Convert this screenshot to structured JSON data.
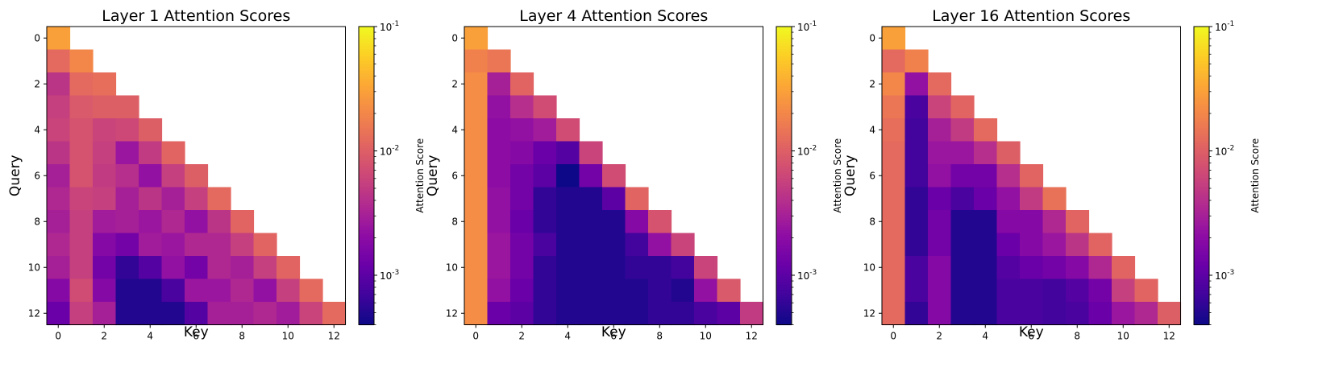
{
  "chart_data": [
    {
      "type": "heatmap",
      "title": "Layer 1 Attention Scores",
      "xlabel": "Key",
      "ylabel": "Query",
      "colorbar_label": "Attention Score",
      "colormap": "plasma",
      "scale": "log",
      "vmin": 0.0004,
      "vmax": 0.1,
      "x_ticks": [
        "0",
        "2",
        "4",
        "6",
        "8",
        "10",
        "12"
      ],
      "y_ticks": [
        "0",
        "2",
        "4",
        "6",
        "8",
        "10",
        "12"
      ],
      "colorbar_ticks": [
        {
          "base": "10",
          "exp": "-1"
        },
        {
          "base": "10",
          "exp": "-2"
        },
        {
          "base": "10",
          "exp": "-3"
        }
      ],
      "matrix": [
        [
          0.03
        ],
        [
          0.012,
          0.02
        ],
        [
          0.0045,
          0.012,
          0.013
        ],
        [
          0.0055,
          0.009,
          0.01,
          0.01
        ],
        [
          0.006,
          0.008,
          0.006,
          0.0065,
          0.01
        ],
        [
          0.0045,
          0.008,
          0.0055,
          0.0025,
          0.005,
          0.011
        ],
        [
          0.003,
          0.008,
          0.005,
          0.004,
          0.0022,
          0.0055,
          0.01
        ],
        [
          0.0035,
          0.006,
          0.0055,
          0.003,
          0.0045,
          0.003,
          0.0055,
          0.012
        ],
        [
          0.003,
          0.0055,
          0.0028,
          0.003,
          0.0025,
          0.0035,
          0.0022,
          0.0045,
          0.011
        ],
        [
          0.0035,
          0.0055,
          0.0018,
          0.0014,
          0.0028,
          0.0025,
          0.0035,
          0.0035,
          0.0055,
          0.011
        ],
        [
          0.003,
          0.0055,
          0.0014,
          0.0006,
          0.0009,
          0.0022,
          0.0014,
          0.0035,
          0.003,
          0.0055,
          0.011
        ],
        [
          0.0018,
          0.007,
          0.0018,
          0.0005,
          0.0005,
          0.0008,
          0.0025,
          0.0025,
          0.0035,
          0.0022,
          0.0055,
          0.012
        ],
        [
          0.0012,
          0.0055,
          0.003,
          0.0005,
          0.0005,
          0.0005,
          0.0009,
          0.003,
          0.003,
          0.0035,
          0.0028,
          0.006,
          0.012
        ]
      ]
    },
    {
      "type": "heatmap",
      "title": "Layer 4 Attention Scores",
      "xlabel": "Key",
      "ylabel": "Query",
      "colorbar_label": "Attention Score",
      "colormap": "plasma",
      "scale": "log",
      "vmin": 0.0004,
      "vmax": 0.1,
      "x_ticks": [
        "0",
        "2",
        "4",
        "6",
        "8",
        "10",
        "12"
      ],
      "y_ticks": [
        "0",
        "2",
        "4",
        "6",
        "8",
        "10",
        "12"
      ],
      "colorbar_ticks": [
        {
          "base": "10",
          "exp": "-1"
        },
        {
          "base": "10",
          "exp": "-2"
        },
        {
          "base": "10",
          "exp": "-3"
        }
      ],
      "matrix": [
        [
          0.03
        ],
        [
          0.018,
          0.015
        ],
        [
          0.022,
          0.003,
          0.011
        ],
        [
          0.022,
          0.0022,
          0.004,
          0.007
        ],
        [
          0.022,
          0.002,
          0.0022,
          0.0028,
          0.007
        ],
        [
          0.022,
          0.002,
          0.0018,
          0.0012,
          0.0009,
          0.006
        ],
        [
          0.022,
          0.002,
          0.0014,
          0.001,
          0.0004,
          0.0014,
          0.007
        ],
        [
          0.022,
          0.0022,
          0.0014,
          0.0006,
          0.0005,
          0.0005,
          0.001,
          0.011
        ],
        [
          0.022,
          0.0022,
          0.0012,
          0.0006,
          0.0005,
          0.0005,
          0.0005,
          0.0018,
          0.008
        ],
        [
          0.022,
          0.0025,
          0.0014,
          0.0008,
          0.0005,
          0.0005,
          0.0005,
          0.0007,
          0.0022,
          0.006
        ],
        [
          0.022,
          0.0025,
          0.0014,
          0.0006,
          0.0005,
          0.0005,
          0.0005,
          0.0006,
          0.0006,
          0.0007,
          0.006
        ],
        [
          0.022,
          0.0022,
          0.0012,
          0.0006,
          0.0005,
          0.0005,
          0.0005,
          0.0005,
          0.0006,
          0.0005,
          0.0022,
          0.009
        ],
        [
          0.022,
          0.0012,
          0.001,
          0.0006,
          0.0005,
          0.0005,
          0.0005,
          0.0005,
          0.0006,
          0.0006,
          0.0008,
          0.001,
          0.005
        ]
      ]
    },
    {
      "type": "heatmap",
      "title": "Layer 16 Attention Scores",
      "xlabel": "Key",
      "ylabel": "Query",
      "colorbar_label": "Attention Score",
      "colormap": "plasma",
      "scale": "log",
      "vmin": 0.0004,
      "vmax": 0.1,
      "x_ticks": [
        "0",
        "2",
        "4",
        "6",
        "8",
        "10",
        "12"
      ],
      "y_ticks": [
        "0",
        "2",
        "4",
        "6",
        "8",
        "10",
        "12"
      ],
      "colorbar_ticks": [
        {
          "base": "10",
          "exp": "-1"
        },
        {
          "base": "10",
          "exp": "-2"
        },
        {
          "base": "10",
          "exp": "-3"
        }
      ],
      "matrix": [
        [
          0.03
        ],
        [
          0.012,
          0.018
        ],
        [
          0.02,
          0.0022,
          0.012
        ],
        [
          0.015,
          0.0008,
          0.006,
          0.011
        ],
        [
          0.013,
          0.0007,
          0.003,
          0.005,
          0.012
        ],
        [
          0.012,
          0.0007,
          0.0025,
          0.0025,
          0.004,
          0.01
        ],
        [
          0.012,
          0.0007,
          0.0022,
          0.0014,
          0.0014,
          0.004,
          0.011
        ],
        [
          0.012,
          0.0006,
          0.0012,
          0.0008,
          0.0012,
          0.0022,
          0.005,
          0.014
        ],
        [
          0.012,
          0.0006,
          0.0014,
          0.0005,
          0.0005,
          0.0018,
          0.0018,
          0.0035,
          0.011
        ],
        [
          0.012,
          0.0006,
          0.0014,
          0.0005,
          0.0005,
          0.0012,
          0.0018,
          0.0025,
          0.0045,
          0.011
        ],
        [
          0.012,
          0.0008,
          0.0018,
          0.0005,
          0.0005,
          0.0009,
          0.0012,
          0.0014,
          0.0018,
          0.0035,
          0.011
        ],
        [
          0.012,
          0.0008,
          0.0018,
          0.0005,
          0.0005,
          0.0008,
          0.0008,
          0.0007,
          0.0009,
          0.0014,
          0.0055,
          0.011
        ],
        [
          0.012,
          0.0006,
          0.0018,
          0.0005,
          0.0005,
          0.0008,
          0.0008,
          0.0007,
          0.0008,
          0.0012,
          0.0025,
          0.0035,
          0.01
        ]
      ]
    }
  ]
}
